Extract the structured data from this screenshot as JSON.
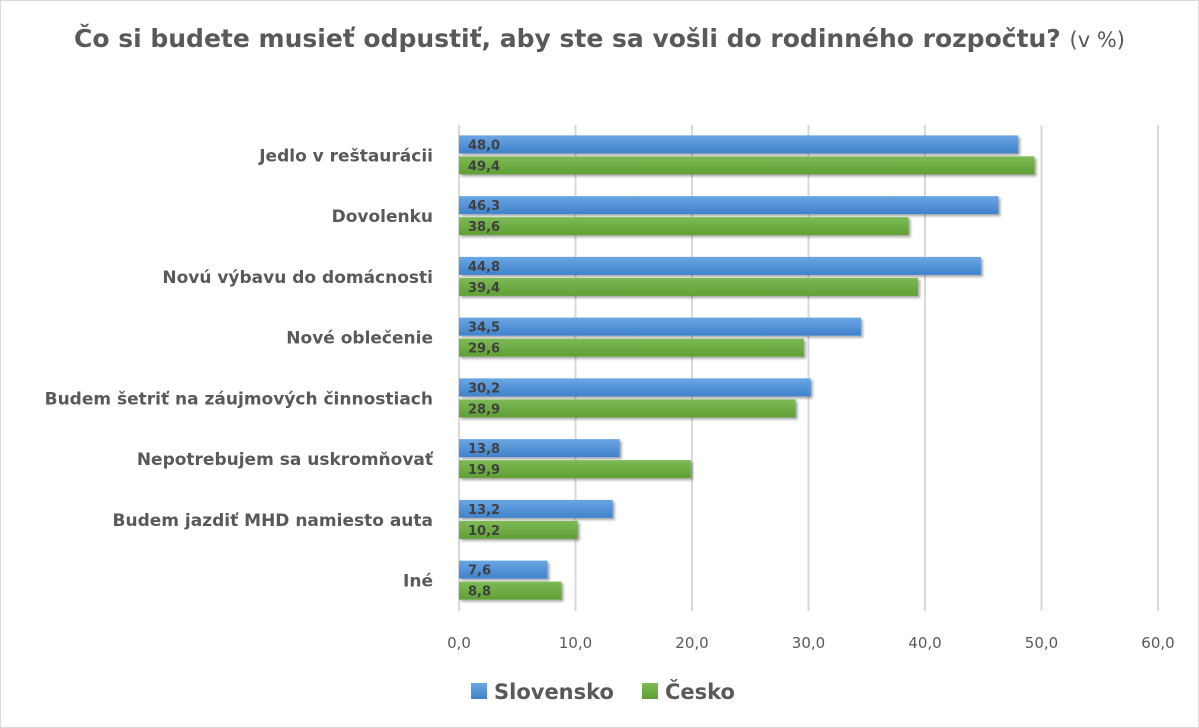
{
  "chart_data": {
    "type": "bar",
    "orientation": "horizontal",
    "title": "Čo si budete musieť odpustiť, aby ste sa vošli do rodinného rozpočtu?",
    "title_unit": "(v %)",
    "categories": [
      "Jedlo v reštaurácii",
      "Dovolenku",
      "Novú výbavu do domácnosti",
      "Nové oblečenie",
      "Budem šetriť na záujmových činnostiach",
      "Nepotrebujem sa uskromňovať",
      "Budem jazdiť MHD namiesto auta",
      "Iné"
    ],
    "series": [
      {
        "name": "Slovensko",
        "color": "#4a8ed6",
        "values": [
          48.0,
          46.3,
          44.8,
          34.5,
          30.2,
          13.8,
          13.2,
          7.6
        ],
        "labels": [
          "48,0",
          "46,3",
          "44,8",
          "34,5",
          "30,2",
          "13,8",
          "13,2",
          "7,6"
        ]
      },
      {
        "name": "Česko",
        "color": "#6aad3f",
        "values": [
          49.4,
          38.6,
          39.4,
          29.6,
          28.9,
          19.9,
          10.2,
          8.8
        ],
        "labels": [
          "49,4",
          "38,6",
          "39,4",
          "29,6",
          "28,9",
          "19,9",
          "10,2",
          "8,8"
        ]
      }
    ],
    "xlim": [
      0,
      60
    ],
    "xticks": [
      "0,0",
      "10,0",
      "20,0",
      "30,0",
      "40,0",
      "50,0",
      "60,0"
    ],
    "grid": true,
    "legend": "bottom"
  }
}
